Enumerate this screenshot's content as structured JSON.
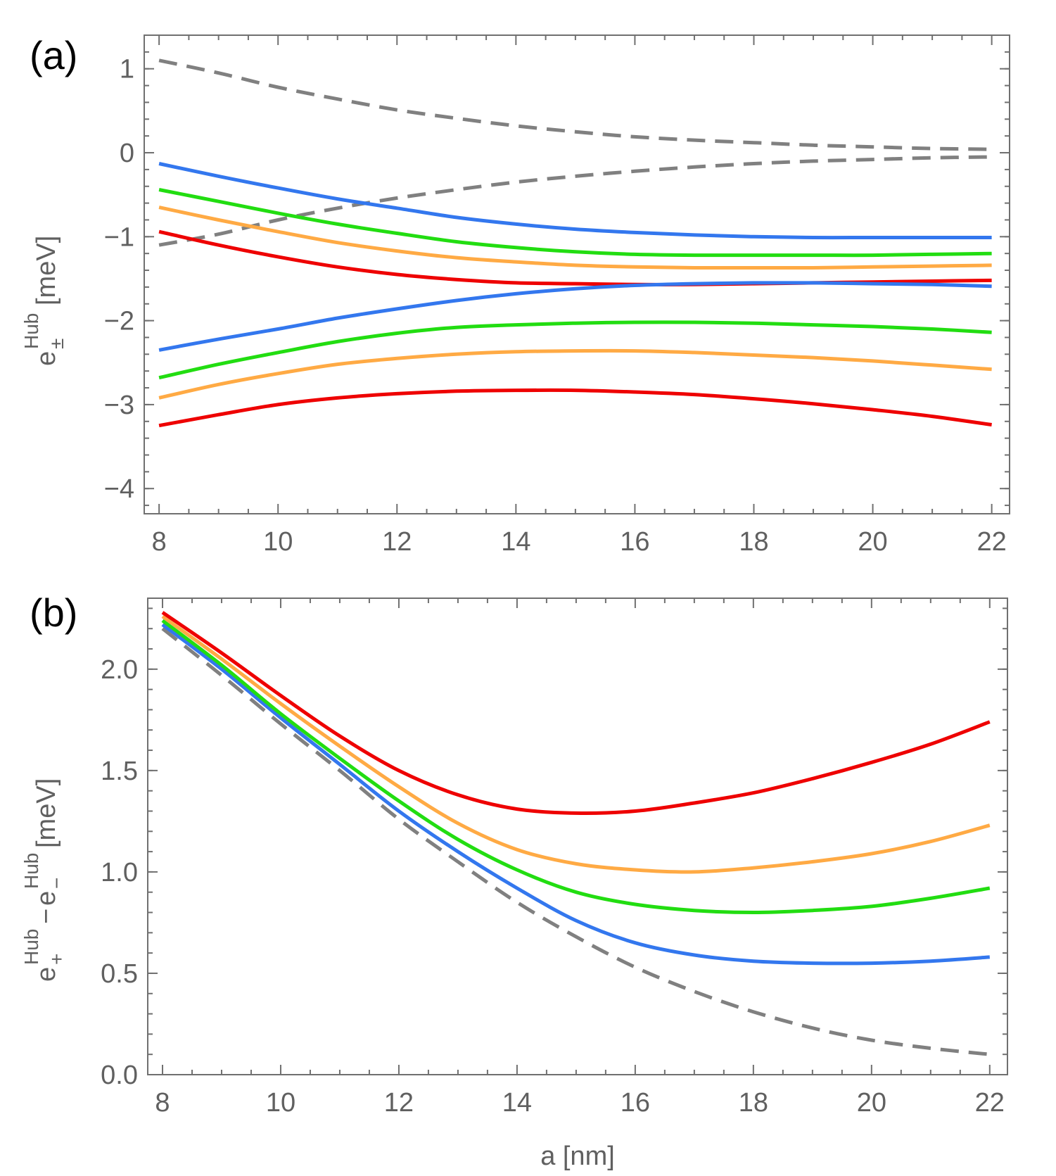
{
  "chart_data": [
    {
      "type": "line",
      "panel_label": "(a)",
      "xlabel": "",
      "ylabel": {
        "base": "e",
        "sub": "±",
        "sup": "Hub",
        "unit": "[meV]"
      },
      "xlim": [
        7.75,
        22.3
      ],
      "ylim": [
        -4.3,
        1.4
      ],
      "x_ticks": [
        8,
        10,
        12,
        14,
        16,
        18,
        20,
        22
      ],
      "y_ticks": [
        1,
        0,
        -1,
        -2,
        -3,
        -4
      ],
      "y_tick_labels": [
        "1",
        "0",
        "−1",
        "−2",
        "−3",
        "−4"
      ],
      "grid": false,
      "x": [
        8,
        9,
        10,
        11,
        12,
        13,
        14,
        15,
        16,
        17,
        18,
        19,
        20,
        21,
        22
      ],
      "series": [
        {
          "color": "#808080",
          "dashed": true,
          "values": [
            1.1,
            0.95,
            0.78,
            0.64,
            0.51,
            0.41,
            0.32,
            0.25,
            0.19,
            0.15,
            0.12,
            0.09,
            0.07,
            0.05,
            0.04
          ]
        },
        {
          "color": "#808080",
          "dashed": true,
          "values": [
            -1.1,
            -0.97,
            -0.8,
            -0.66,
            -0.54,
            -0.44,
            -0.35,
            -0.28,
            -0.22,
            -0.17,
            -0.13,
            -0.1,
            -0.08,
            -0.06,
            -0.05
          ]
        },
        {
          "color": "#3377ee",
          "values": [
            -0.13,
            -0.28,
            -0.42,
            -0.55,
            -0.66,
            -0.77,
            -0.85,
            -0.91,
            -0.95,
            -0.98,
            -1.0,
            -1.01,
            -1.01,
            -1.01,
            -1.01
          ]
        },
        {
          "color": "#22dd11",
          "values": [
            -0.44,
            -0.58,
            -0.72,
            -0.85,
            -0.96,
            -1.06,
            -1.13,
            -1.18,
            -1.21,
            -1.22,
            -1.22,
            -1.22,
            -1.22,
            -1.21,
            -1.2
          ]
        },
        {
          "color": "#ffaa44",
          "values": [
            -0.65,
            -0.8,
            -0.94,
            -1.07,
            -1.17,
            -1.25,
            -1.3,
            -1.34,
            -1.36,
            -1.37,
            -1.37,
            -1.37,
            -1.36,
            -1.35,
            -1.34
          ]
        },
        {
          "color": "#ee0000",
          "values": [
            -0.94,
            -1.1,
            -1.24,
            -1.36,
            -1.45,
            -1.51,
            -1.55,
            -1.56,
            -1.57,
            -1.57,
            -1.56,
            -1.55,
            -1.54,
            -1.53,
            -1.52
          ]
        },
        {
          "color": "#3377ee",
          "values": [
            -2.35,
            -2.22,
            -2.1,
            -1.97,
            -1.86,
            -1.76,
            -1.68,
            -1.62,
            -1.58,
            -1.56,
            -1.55,
            -1.55,
            -1.56,
            -1.57,
            -1.59
          ]
        },
        {
          "color": "#22dd11",
          "values": [
            -2.68,
            -2.52,
            -2.38,
            -2.25,
            -2.15,
            -2.08,
            -2.05,
            -2.03,
            -2.02,
            -2.02,
            -2.03,
            -2.05,
            -2.07,
            -2.1,
            -2.14
          ]
        },
        {
          "color": "#ffaa44",
          "values": [
            -2.92,
            -2.76,
            -2.63,
            -2.52,
            -2.45,
            -2.4,
            -2.37,
            -2.36,
            -2.36,
            -2.38,
            -2.41,
            -2.44,
            -2.48,
            -2.53,
            -2.58
          ]
        },
        {
          "color": "#ee0000",
          "values": [
            -3.25,
            -3.12,
            -3.0,
            -2.92,
            -2.87,
            -2.84,
            -2.83,
            -2.83,
            -2.85,
            -2.88,
            -2.93,
            -2.99,
            -3.06,
            -3.14,
            -3.24
          ]
        }
      ]
    },
    {
      "type": "line",
      "panel_label": "(b)",
      "xlabel": "a [nm]",
      "ylabel": {
        "plus_base": "e",
        "plus_sub": "+",
        "plus_sup": "Hub",
        "minus": "−",
        "minus_base": "e",
        "minus_sub": "−",
        "minus_sup": "Hub",
        "unit": "[meV]"
      },
      "xlim": [
        7.75,
        22.3
      ],
      "ylim": [
        0,
        2.35
      ],
      "x_ticks": [
        8,
        10,
        12,
        14,
        16,
        18,
        20,
        22
      ],
      "y_ticks": [
        2.0,
        1.5,
        1.0,
        0.5,
        0.0
      ],
      "y_tick_labels": [
        "2.0",
        "1.5",
        "1.0",
        "0.5",
        "0.0"
      ],
      "grid": false,
      "x": [
        8,
        9,
        10,
        11,
        12,
        13,
        14,
        15,
        16,
        17,
        18,
        19,
        20,
        21,
        22
      ],
      "series": [
        {
          "color": "#808080",
          "dashed": true,
          "values": [
            2.2,
            1.97,
            1.73,
            1.5,
            1.26,
            1.05,
            0.85,
            0.68,
            0.53,
            0.41,
            0.31,
            0.23,
            0.17,
            0.13,
            0.1
          ]
        },
        {
          "color": "#3377ee",
          "values": [
            2.22,
            2.0,
            1.76,
            1.53,
            1.3,
            1.1,
            0.92,
            0.76,
            0.65,
            0.59,
            0.56,
            0.55,
            0.55,
            0.56,
            0.58
          ]
        },
        {
          "color": "#22dd11",
          "values": [
            2.24,
            2.02,
            1.78,
            1.56,
            1.35,
            1.16,
            1.01,
            0.9,
            0.84,
            0.81,
            0.8,
            0.81,
            0.83,
            0.87,
            0.92
          ]
        },
        {
          "color": "#ffaa44",
          "values": [
            2.26,
            2.05,
            1.83,
            1.62,
            1.42,
            1.24,
            1.11,
            1.04,
            1.01,
            1.0,
            1.02,
            1.05,
            1.09,
            1.15,
            1.23
          ]
        },
        {
          "color": "#ee0000",
          "values": [
            2.28,
            2.08,
            1.87,
            1.67,
            1.5,
            1.38,
            1.31,
            1.29,
            1.3,
            1.34,
            1.39,
            1.46,
            1.54,
            1.63,
            1.74
          ]
        }
      ]
    }
  ]
}
